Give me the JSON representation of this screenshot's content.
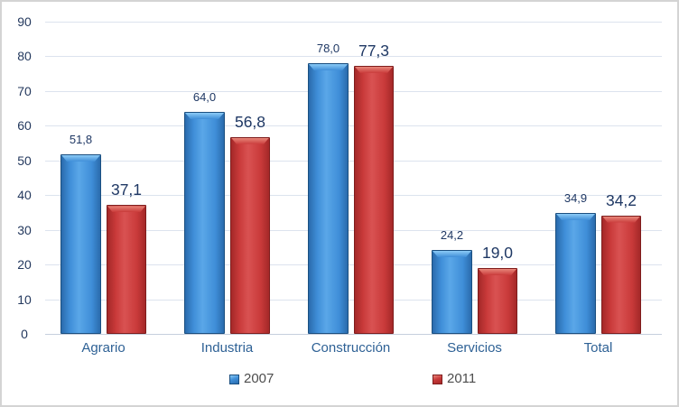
{
  "chart_data": {
    "type": "bar",
    "title": "",
    "categories": [
      "Agrario",
      "Industria",
      "Construcción",
      "Servicios",
      "Total"
    ],
    "series": [
      {
        "name": "2007",
        "values": [
          51.8,
          64.0,
          78.0,
          24.2,
          34.9
        ],
        "value_labels": [
          "51,8",
          "64,0",
          "78,0",
          "24,2",
          "34,9"
        ],
        "colors": {
          "border": "#1b4f80",
          "dark": "#2a6bac",
          "mid": "#3f8ed8",
          "center": "#5aa7e8",
          "light": "#8bcbf6"
        }
      },
      {
        "name": "2011",
        "values": [
          37.1,
          56.8,
          77.3,
          19.0,
          34.2
        ],
        "value_labels": [
          "37,1",
          "56,8",
          "77,3",
          "19,0",
          "34,2"
        ],
        "colors": {
          "border": "#7e1d1d",
          "dark": "#a42828",
          "mid": "#c93a3a",
          "center": "#d95252",
          "light": "#e8867a"
        }
      }
    ],
    "xlabel": "",
    "ylabel": "",
    "ylim": [
      0,
      90
    ],
    "ytick_step": 10,
    "ytick_labels": [
      "0",
      "10",
      "20",
      "30",
      "40",
      "50",
      "60",
      "70",
      "80",
      "90"
    ],
    "grid": true,
    "gridline_color": "#dce3ee",
    "axis_line_color": "#c6cfdd",
    "label_color": "#1f3864",
    "category_label_color": "#2e6195",
    "legend_text_color": "#4d4d4d",
    "legend_position": "bottom"
  }
}
